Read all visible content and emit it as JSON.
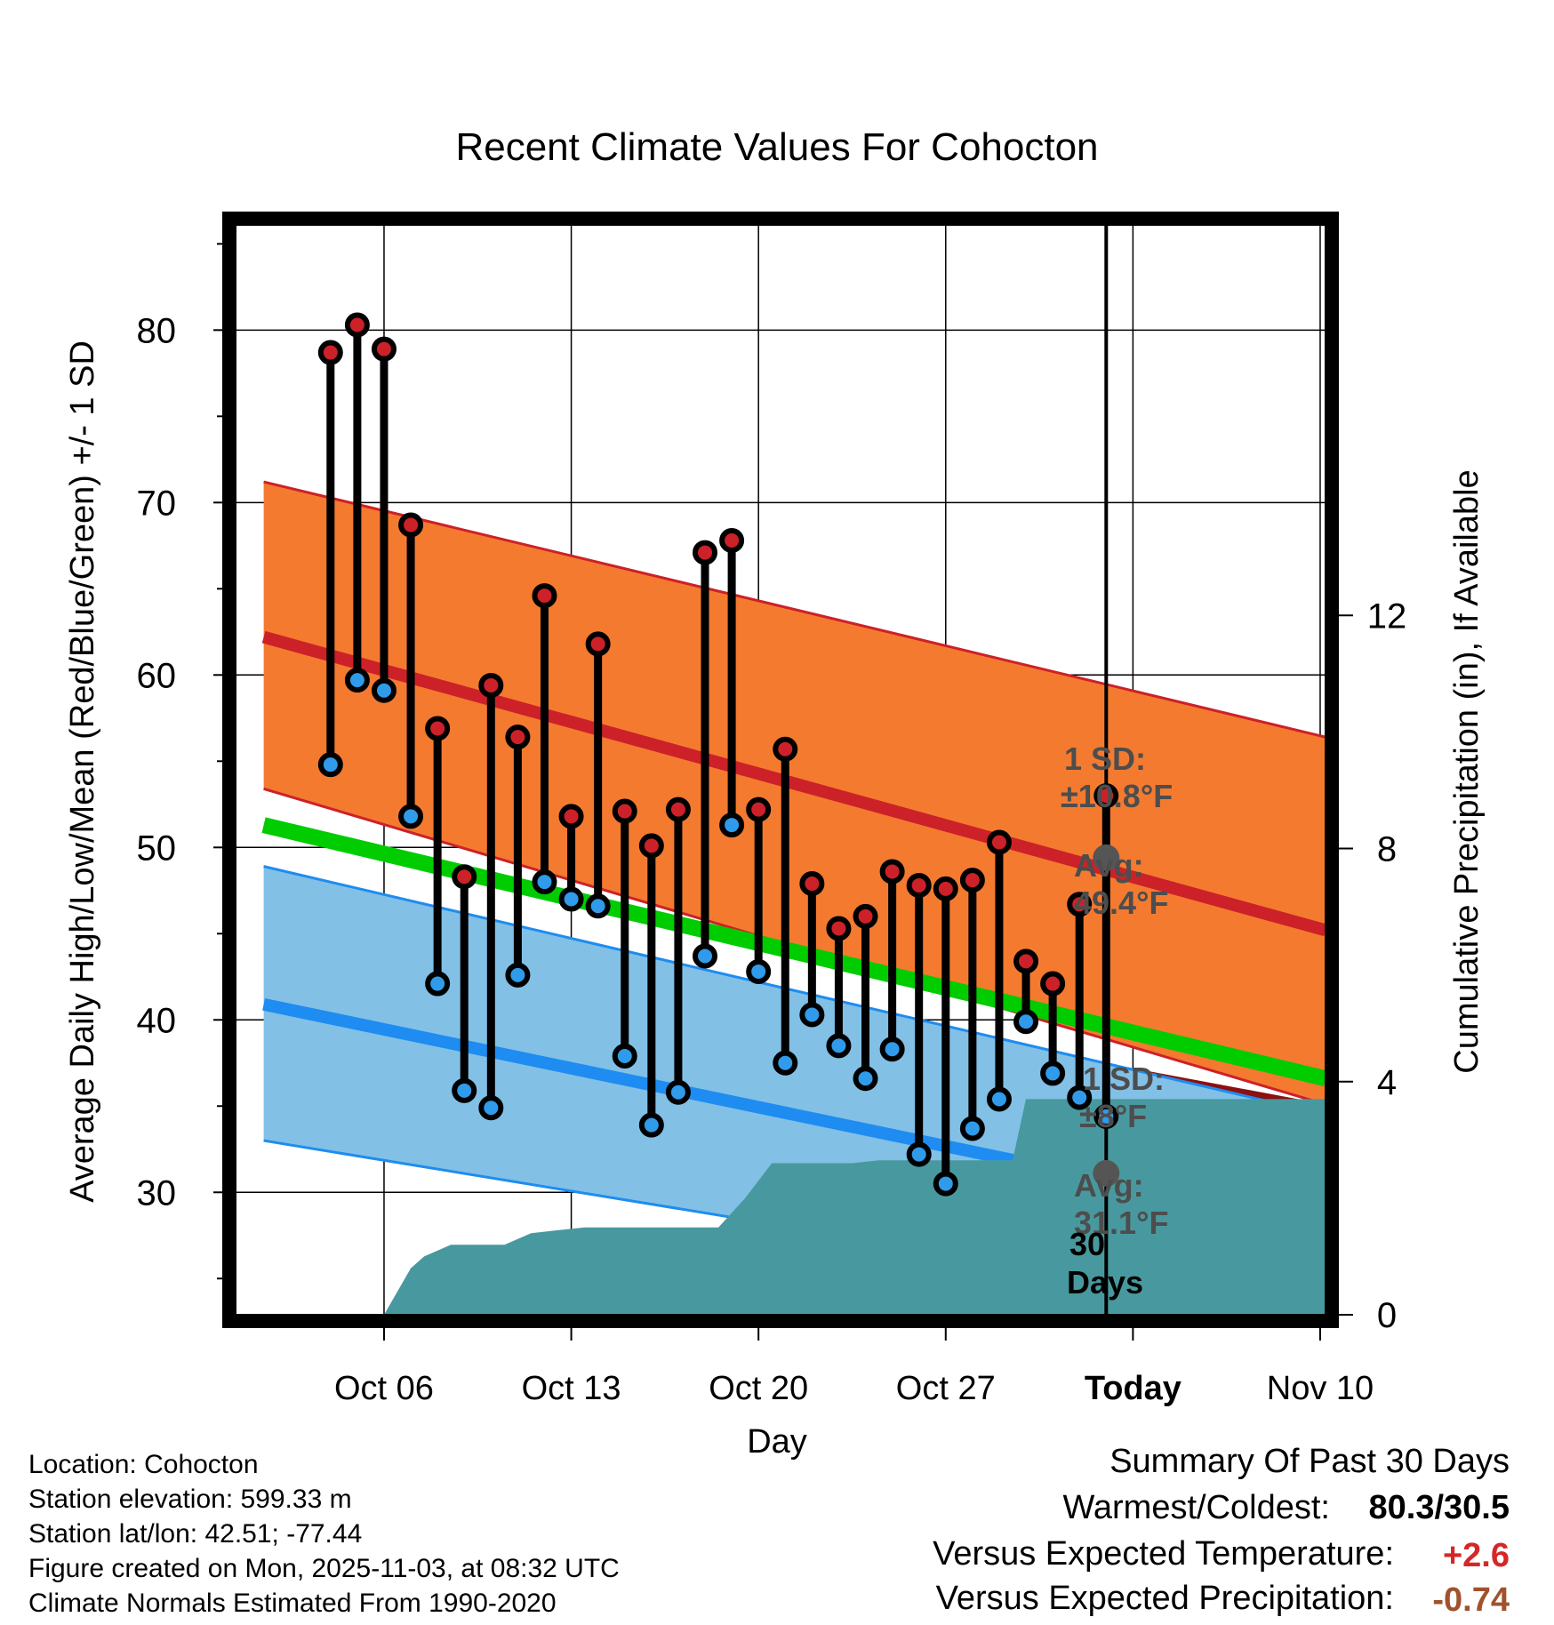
{
  "colors": {
    "high_band": "#f47a30",
    "low_band": "#82c0e6",
    "high_line": "#cc2128",
    "low_line": "#1e8cf0",
    "mean_line": "#00cc00",
    "overlap": "#8b1010",
    "precip": "#48999f",
    "high_dot": "#cc2128",
    "low_dot": "#2f9bea",
    "avg_marker": "#555555",
    "anno_text": "#4d4d4d",
    "pos_temp": "#d62728",
    "neg_precip": "#a0522d"
  },
  "chart_data": {
    "type": "line",
    "title": "Recent Climate Values For Cohocton",
    "xlabel": "Day",
    "ylabel": "Average Daily High/Low/Mean (Red/Blue/Green) +/- 1 SD",
    "y2label": "Cumulative Precipitation (in), If Available",
    "xlim": [
      -2.55,
      38.2
    ],
    "ylim": [
      22.9,
      86.1
    ],
    "y2lim": [
      0,
      18.7
    ],
    "grid": true,
    "today_x": 30,
    "x_ticks": [
      {
        "x": 3,
        "label": "Oct 06"
      },
      {
        "x": 10,
        "label": "Oct 13"
      },
      {
        "x": 17,
        "label": "Oct 20"
      },
      {
        "x": 24,
        "label": "Oct 27"
      },
      {
        "x": 31,
        "label": "Today"
      },
      {
        "x": 38,
        "label": "Nov 10"
      }
    ],
    "y_ticks": [
      30,
      40,
      50,
      60,
      70,
      80
    ],
    "y2_ticks": [
      0,
      4,
      8,
      12
    ],
    "days": [
      1,
      2,
      3,
      4,
      5,
      6,
      7,
      8,
      9,
      10,
      11,
      12,
      13,
      14,
      15,
      16,
      17,
      18,
      19,
      20,
      21,
      22,
      23,
      24,
      25,
      26,
      27,
      28,
      29,
      30
    ],
    "highs": [
      78.7,
      80.3,
      78.9,
      68.7,
      56.9,
      48.3,
      59.4,
      56.4,
      64.6,
      51.8,
      61.8,
      52.1,
      50.1,
      52.2,
      67.1,
      67.8,
      52.2,
      55.7,
      47.9,
      45.3,
      46.0,
      48.6,
      47.8,
      47.6,
      48.1,
      50.3,
      43.4,
      42.1,
      46.7,
      53.0
    ],
    "lows": [
      54.8,
      59.7,
      59.1,
      51.8,
      42.1,
      35.9,
      34.9,
      42.6,
      48.0,
      47.0,
      46.6,
      37.9,
      33.9,
      35.8,
      43.7,
      51.3,
      42.8,
      37.5,
      40.3,
      38.5,
      36.6,
      38.3,
      32.2,
      30.5,
      33.7,
      35.4,
      39.9,
      36.9,
      35.5,
      34.4
    ],
    "series": [
      {
        "name": "Normal High",
        "x": [
          -1.5,
          38.2
        ],
        "values": [
          62.2,
          45.2
        ]
      },
      {
        "name": "Normal High +1 SD",
        "x": [
          -1.5,
          38.2
        ],
        "values": [
          71.2,
          56.4
        ]
      },
      {
        "name": "Normal High -1 SD",
        "x": [
          -1.5,
          38.2
        ],
        "values": [
          53.4,
          35.1
        ]
      },
      {
        "name": "Normal Mean",
        "x": [
          -1.5,
          38.2
        ],
        "values": [
          51.3,
          36.6
        ]
      },
      {
        "name": "Normal Low",
        "x": [
          -1.5,
          38.2
        ],
        "values": [
          40.9,
          28.1
        ]
      },
      {
        "name": "Normal Low +1 SD",
        "x": [
          -1.5,
          38.2
        ],
        "values": [
          48.9,
          34.5
        ]
      },
      {
        "name": "Normal Low -1 SD",
        "x": [
          -1.5,
          38.2
        ],
        "values": [
          33.0,
          22.9
        ]
      }
    ],
    "precip": {
      "x": [
        0.5,
        1.5,
        2.5,
        3.0,
        4.0,
        4.5,
        5.5,
        6.5,
        7.5,
        8.5,
        9.5,
        10.5,
        11.5,
        12.5,
        13.5,
        14.5,
        15.5,
        16.5,
        17.5,
        18.5,
        19.5,
        20.5,
        21.5,
        22.5,
        23.5,
        24.5,
        25.5,
        26.5,
        27.0,
        27.5,
        28.5,
        29.5,
        30.5,
        38.2
      ],
      "values": [
        0,
        0,
        0,
        0,
        0.8,
        1.0,
        1.2,
        1.2,
        1.2,
        1.4,
        1.45,
        1.5,
        1.5,
        1.5,
        1.5,
        1.5,
        1.5,
        2.0,
        2.6,
        2.6,
        2.6,
        2.6,
        2.65,
        2.65,
        2.65,
        2.65,
        2.65,
        2.65,
        3.7,
        3.7,
        3.7,
        3.7,
        3.7,
        3.7
      ]
    },
    "annotations": {
      "high_sd_label": "1 SD:",
      "high_sd_value": "±10.8°F",
      "high_avg_label": "Avg:",
      "high_avg_value": "49.4°F",
      "high_avg_temp": 49.4,
      "low_sd_label": "1 SD:",
      "low_sd_value": "±8°F",
      "low_avg_label": "Avg:",
      "low_avg_value": "31.1°F",
      "low_avg_temp": 31.1,
      "days_count": "30",
      "days_word": "Days"
    }
  },
  "info": {
    "location": "Location: Cohocton",
    "elevation": "Station elevation: 599.33 m",
    "latlon": "Station lat/lon: 42.51; -77.44",
    "created": "Figure created on Mon, 2025-11-03, at 08:32 UTC",
    "normals": "Climate Normals Estimated From 1990-2020"
  },
  "summary": {
    "heading": "Summary Of Past 30 Days",
    "warm_cold_label": "Warmest/Coldest:",
    "warm_cold_value": "80.3/30.5",
    "temp_label": "Versus Expected Temperature:",
    "temp_value": "+2.6",
    "precip_label": "Versus Expected Precipitation:",
    "precip_value": "-0.74"
  }
}
